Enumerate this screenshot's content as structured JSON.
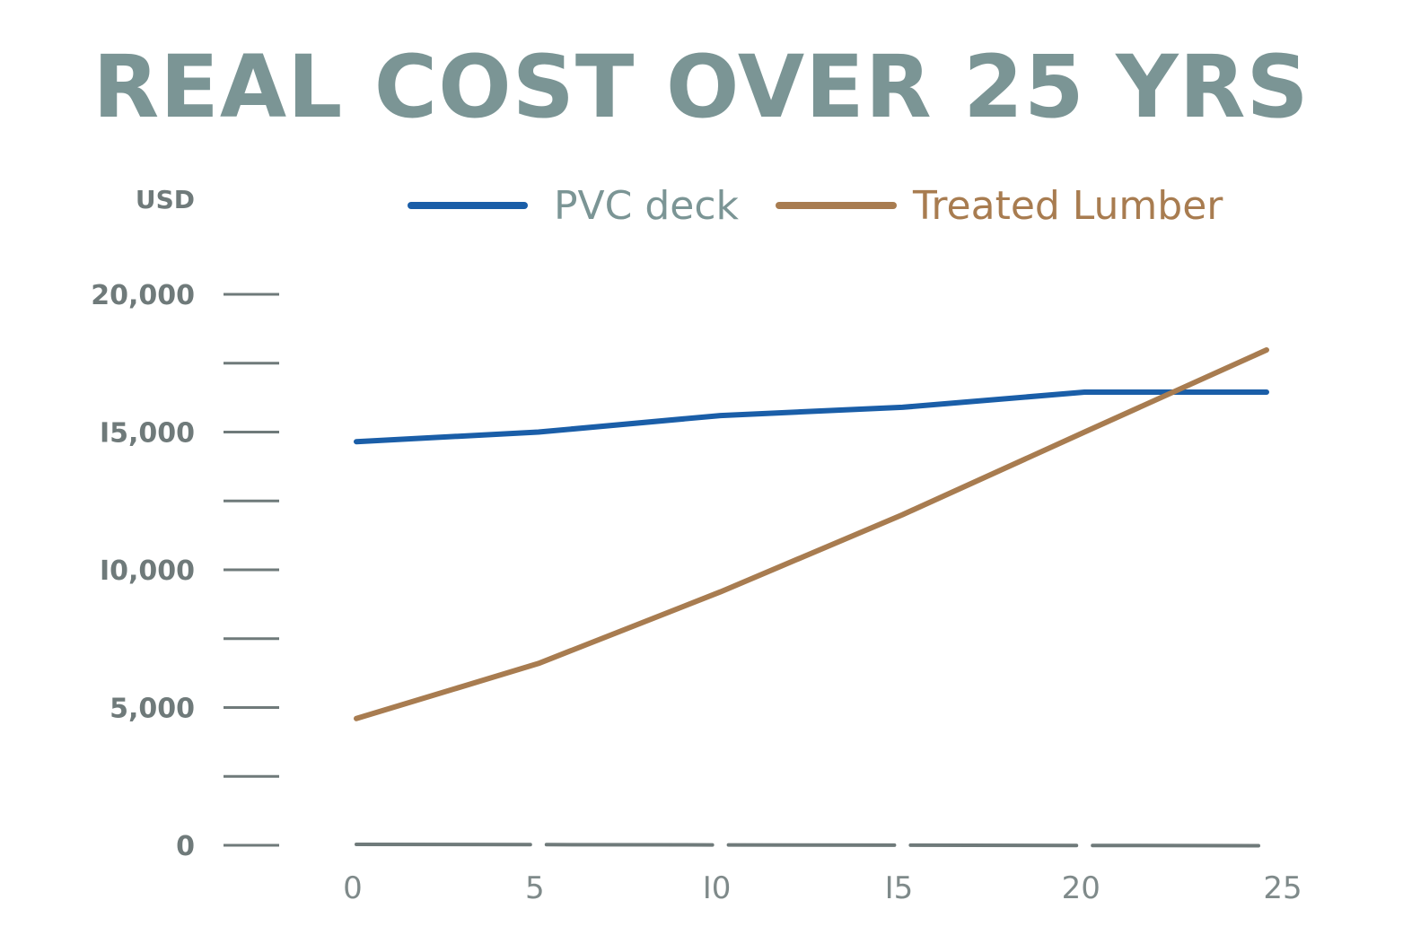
{
  "chart_data": {
    "type": "line",
    "title": "REAL COST OVER 25 YRS",
    "ylabel": "USD",
    "xlabel": "",
    "x": [
      0,
      5,
      10,
      15,
      20,
      25
    ],
    "xtick_labels": [
      "0",
      "5",
      "I0",
      "I5",
      "20",
      "25"
    ],
    "ytick_values": [
      0,
      5000,
      10000,
      15000,
      20000
    ],
    "ytick_labels": [
      "0",
      "5,000",
      "I0,000",
      "I5,000",
      "20,000"
    ],
    "ylim": [
      0,
      20000
    ],
    "xlim": [
      0,
      25
    ],
    "grid": false,
    "legend_position": "top",
    "series": [
      {
        "name": "PVC deck",
        "color": "#1a5ea8",
        "values": [
          14650,
          15000,
          15600,
          15900,
          16450,
          16450
        ]
      },
      {
        "name": "Treated Lumber",
        "color": "#a87c50",
        "values": [
          4600,
          6600,
          9200,
          12000,
          15000,
          17980
        ]
      }
    ],
    "colors": {
      "title": "#7b9595",
      "axis": "#6f7a7a",
      "xtick_text": "#7f8a8a"
    }
  }
}
